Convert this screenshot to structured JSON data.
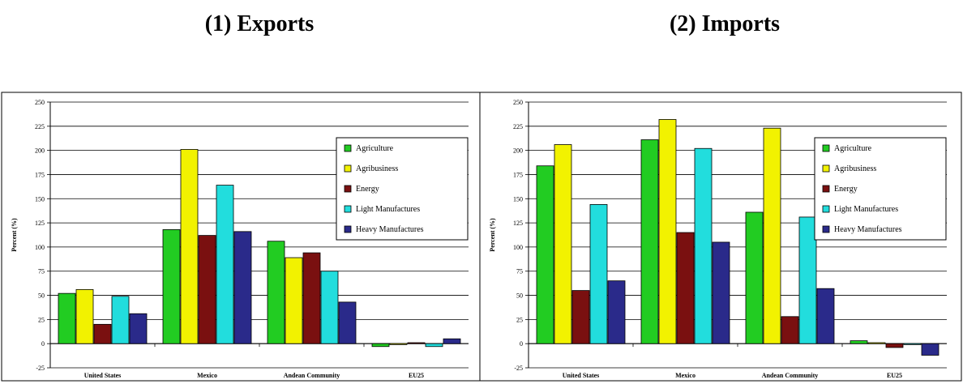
{
  "headings": {
    "exports": "(1) Exports",
    "imports": "(2) Imports"
  },
  "colors": {
    "Agriculture": "#22cc22",
    "Agribusiness": "#f2f200",
    "Energy": "#7a1010",
    "Light Manufactures": "#22dddd",
    "Heavy Manufactures": "#2a2a8a"
  },
  "chart_data": [
    {
      "type": "bar",
      "title": "(1) Exports",
      "xlabel": "",
      "ylabel": "Percent (%)",
      "ylim": [
        -25,
        250
      ],
      "yticks": [
        -25,
        0,
        25,
        50,
        75,
        100,
        125,
        150,
        175,
        200,
        225,
        250
      ],
      "grid": true,
      "legend_position": "top-right",
      "categories": [
        "United States",
        "Mexico",
        "Andean Community",
        "EU25"
      ],
      "series": [
        {
          "name": "Agriculture",
          "values": [
            52,
            118,
            106,
            -3
          ]
        },
        {
          "name": "Agribusiness",
          "values": [
            56,
            201,
            89,
            -1
          ]
        },
        {
          "name": "Energy",
          "values": [
            20,
            112,
            94,
            1
          ]
        },
        {
          "name": "Light Manufactures",
          "values": [
            49,
            164,
            75,
            -3
          ]
        },
        {
          "name": "Heavy Manufactures",
          "values": [
            31,
            116,
            43,
            5
          ]
        }
      ]
    },
    {
      "type": "bar",
      "title": "(2) Imports",
      "xlabel": "",
      "ylabel": "Percent (%)",
      "ylim": [
        -25,
        250
      ],
      "yticks": [
        -25,
        0,
        25,
        50,
        75,
        100,
        125,
        150,
        175,
        200,
        225,
        250
      ],
      "grid": true,
      "legend_position": "top-right",
      "categories": [
        "United States",
        "Mexico",
        "Andean Community",
        "EU25"
      ],
      "series": [
        {
          "name": "Agriculture",
          "values": [
            184,
            211,
            136,
            3
          ]
        },
        {
          "name": "Agribusiness",
          "values": [
            206,
            232,
            223,
            1
          ]
        },
        {
          "name": "Energy",
          "values": [
            55,
            115,
            28,
            -4
          ]
        },
        {
          "name": "Light Manufactures",
          "values": [
            144,
            202,
            131,
            -1
          ]
        },
        {
          "name": "Heavy Manufactures",
          "values": [
            65,
            105,
            57,
            -12
          ]
        }
      ]
    }
  ]
}
